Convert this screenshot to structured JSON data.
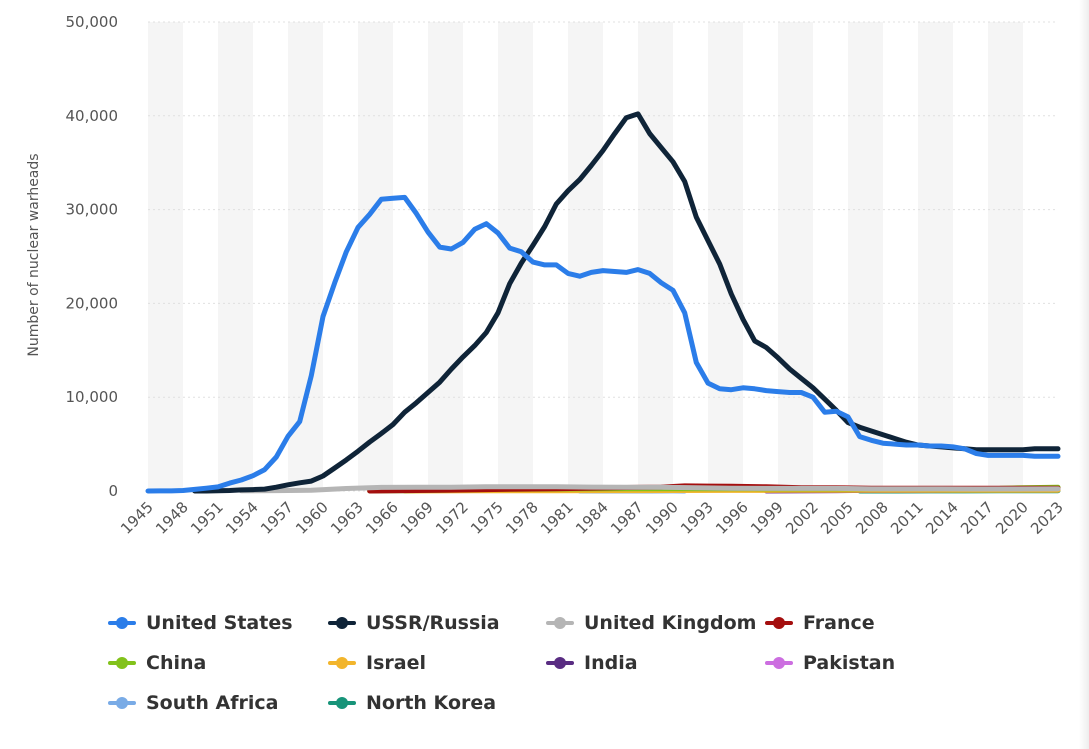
{
  "chart_data": {
    "type": "line",
    "ylabel": "Number of nuclear warheads",
    "ylim": [
      0,
      50000
    ],
    "y_ticks": [
      "0",
      "10,000",
      "20,000",
      "30,000",
      "40,000",
      "50,000"
    ],
    "y_tick_values": [
      0,
      10000,
      20000,
      30000,
      40000,
      50000
    ],
    "x_range": [
      1945,
      2023
    ],
    "x_ticks": [
      "1945",
      "1948",
      "1951",
      "1954",
      "1957",
      "1960",
      "1963",
      "1966",
      "1969",
      "1972",
      "1975",
      "1978",
      "1981",
      "1984",
      "1987",
      "1990",
      "1993",
      "1996",
      "1999",
      "2002",
      "2005",
      "2008",
      "2011",
      "2014",
      "2017",
      "2020",
      "2023"
    ],
    "grid": "alternating vertical bands",
    "legend_position": "bottom",
    "series": [
      {
        "name": "United States",
        "color": "#2b7de9",
        "points": [
          [
            1945,
            2
          ],
          [
            1946,
            9
          ],
          [
            1947,
            13
          ],
          [
            1948,
            50
          ],
          [
            1949,
            170
          ],
          [
            1950,
            300
          ],
          [
            1951,
            440
          ],
          [
            1952,
            840
          ],
          [
            1953,
            1170
          ],
          [
            1954,
            1630
          ],
          [
            1955,
            2280
          ],
          [
            1956,
            3620
          ],
          [
            1957,
            5830
          ],
          [
            1958,
            7400
          ],
          [
            1959,
            12300
          ],
          [
            1960,
            18600
          ],
          [
            1961,
            22200
          ],
          [
            1962,
            25500
          ],
          [
            1963,
            28100
          ],
          [
            1964,
            29500
          ],
          [
            1965,
            31100
          ],
          [
            1966,
            31200
          ],
          [
            1967,
            31300
          ],
          [
            1968,
            29600
          ],
          [
            1969,
            27600
          ],
          [
            1970,
            26000
          ],
          [
            1971,
            25800
          ],
          [
            1972,
            26500
          ],
          [
            1973,
            27900
          ],
          [
            1974,
            28500
          ],
          [
            1975,
            27500
          ],
          [
            1976,
            25900
          ],
          [
            1977,
            25500
          ],
          [
            1978,
            24400
          ],
          [
            1979,
            24100
          ],
          [
            1980,
            24100
          ],
          [
            1981,
            23200
          ],
          [
            1982,
            22900
          ],
          [
            1983,
            23300
          ],
          [
            1984,
            23500
          ],
          [
            1985,
            23400
          ],
          [
            1986,
            23300
          ],
          [
            1987,
            23600
          ],
          [
            1988,
            23200
          ],
          [
            1989,
            22200
          ],
          [
            1990,
            21400
          ],
          [
            1991,
            19000
          ],
          [
            1992,
            13700
          ],
          [
            1993,
            11500
          ],
          [
            1994,
            10900
          ],
          [
            1995,
            10800
          ],
          [
            1996,
            11000
          ],
          [
            1997,
            10900
          ],
          [
            1998,
            10700
          ],
          [
            1999,
            10600
          ],
          [
            2000,
            10500
          ],
          [
            2001,
            10500
          ],
          [
            2002,
            10000
          ],
          [
            2003,
            8400
          ],
          [
            2004,
            8500
          ],
          [
            2005,
            7900
          ],
          [
            2006,
            5800
          ],
          [
            2007,
            5400
          ],
          [
            2008,
            5100
          ],
          [
            2009,
            5000
          ],
          [
            2010,
            4900
          ],
          [
            2011,
            4900
          ],
          [
            2012,
            4800
          ],
          [
            2013,
            4800
          ],
          [
            2014,
            4700
          ],
          [
            2015,
            4500
          ],
          [
            2016,
            4000
          ],
          [
            2017,
            3800
          ],
          [
            2018,
            3800
          ],
          [
            2019,
            3800
          ],
          [
            2020,
            3800
          ],
          [
            2021,
            3700
          ],
          [
            2022,
            3700
          ],
          [
            2023,
            3700
          ]
        ]
      },
      {
        "name": "USSR/Russia",
        "color": "#0f2438",
        "points": [
          [
            1949,
            1
          ],
          [
            1950,
            5
          ],
          [
            1951,
            25
          ],
          [
            1952,
            50
          ],
          [
            1953,
            120
          ],
          [
            1954,
            150
          ],
          [
            1955,
            200
          ],
          [
            1956,
            400
          ],
          [
            1957,
            660
          ],
          [
            1958,
            870
          ],
          [
            1959,
            1060
          ],
          [
            1960,
            1600
          ],
          [
            1961,
            2450
          ],
          [
            1962,
            3320
          ],
          [
            1963,
            4240
          ],
          [
            1964,
            5220
          ],
          [
            1965,
            6130
          ],
          [
            1966,
            7090
          ],
          [
            1967,
            8400
          ],
          [
            1968,
            9400
          ],
          [
            1969,
            10500
          ],
          [
            1970,
            11600
          ],
          [
            1971,
            13000
          ],
          [
            1972,
            14300
          ],
          [
            1973,
            15500
          ],
          [
            1974,
            16900
          ],
          [
            1975,
            19000
          ],
          [
            1976,
            22100
          ],
          [
            1977,
            24300
          ],
          [
            1978,
            26200
          ],
          [
            1979,
            28200
          ],
          [
            1980,
            30600
          ],
          [
            1981,
            32000
          ],
          [
            1982,
            33200
          ],
          [
            1983,
            34700
          ],
          [
            1984,
            36300
          ],
          [
            1985,
            38100
          ],
          [
            1986,
            39800
          ],
          [
            1987,
            40200
          ],
          [
            1988,
            38100
          ],
          [
            1989,
            36600
          ],
          [
            1990,
            35100
          ],
          [
            1991,
            33000
          ],
          [
            1992,
            29200
          ],
          [
            1993,
            26700
          ],
          [
            1994,
            24200
          ],
          [
            1995,
            21000
          ],
          [
            1996,
            18300
          ],
          [
            1997,
            16000
          ],
          [
            1998,
            15300
          ],
          [
            1999,
            14200
          ],
          [
            2000,
            13000
          ],
          [
            2001,
            12000
          ],
          [
            2002,
            11000
          ],
          [
            2003,
            9800
          ],
          [
            2004,
            8600
          ],
          [
            2005,
            7300
          ],
          [
            2006,
            6800
          ],
          [
            2007,
            6400
          ],
          [
            2008,
            6000
          ],
          [
            2009,
            5600
          ],
          [
            2010,
            5200
          ],
          [
            2011,
            4900
          ],
          [
            2012,
            4800
          ],
          [
            2013,
            4700
          ],
          [
            2014,
            4600
          ],
          [
            2015,
            4500
          ],
          [
            2016,
            4400
          ],
          [
            2017,
            4400
          ],
          [
            2018,
            4400
          ],
          [
            2019,
            4400
          ],
          [
            2020,
            4400
          ],
          [
            2021,
            4500
          ],
          [
            2022,
            4500
          ],
          [
            2023,
            4500
          ]
        ]
      },
      {
        "name": "United Kingdom",
        "color": "#b5b5b5",
        "points": [
          [
            1953,
            20
          ],
          [
            1956,
            40
          ],
          [
            1959,
            90
          ],
          [
            1962,
            270
          ],
          [
            1965,
            380
          ],
          [
            1968,
            400
          ],
          [
            1971,
            410
          ],
          [
            1974,
            450
          ],
          [
            1977,
            460
          ],
          [
            1980,
            450
          ],
          [
            1983,
            420
          ],
          [
            1986,
            400
          ],
          [
            1989,
            400
          ],
          [
            1992,
            350
          ],
          [
            1995,
            300
          ],
          [
            1998,
            280
          ],
          [
            2001,
            280
          ],
          [
            2004,
            280
          ],
          [
            2007,
            225
          ],
          [
            2010,
            225
          ],
          [
            2013,
            225
          ],
          [
            2016,
            215
          ],
          [
            2019,
            215
          ],
          [
            2023,
            225
          ]
        ]
      },
      {
        "name": "France",
        "color": "#a40e0e",
        "points": [
          [
            1964,
            4
          ],
          [
            1966,
            36
          ],
          [
            1968,
            50
          ],
          [
            1971,
            100
          ],
          [
            1974,
            150
          ],
          [
            1977,
            200
          ],
          [
            1980,
            250
          ],
          [
            1983,
            310
          ],
          [
            1986,
            370
          ],
          [
            1989,
            420
          ],
          [
            1991,
            540
          ],
          [
            1993,
            525
          ],
          [
            1995,
            500
          ],
          [
            1998,
            450
          ],
          [
            2001,
            350
          ],
          [
            2004,
            350
          ],
          [
            2007,
            300
          ],
          [
            2010,
            300
          ],
          [
            2013,
            300
          ],
          [
            2016,
            300
          ],
          [
            2019,
            290
          ],
          [
            2023,
            290
          ]
        ]
      },
      {
        "name": "China",
        "color": "#82c21b",
        "points": [
          [
            1964,
            1
          ],
          [
            1967,
            25
          ],
          [
            1970,
            75
          ],
          [
            1973,
            150
          ],
          [
            1976,
            185
          ],
          [
            1979,
            205
          ],
          [
            1982,
            225
          ],
          [
            1985,
            240
          ],
          [
            1988,
            240
          ],
          [
            1991,
            235
          ],
          [
            1994,
            235
          ],
          [
            1997,
            230
          ],
          [
            2000,
            225
          ],
          [
            2003,
            220
          ],
          [
            2006,
            220
          ],
          [
            2009,
            240
          ],
          [
            2012,
            250
          ],
          [
            2015,
            260
          ],
          [
            2018,
            280
          ],
          [
            2020,
            350
          ],
          [
            2023,
            410
          ]
        ]
      },
      {
        "name": "Israel",
        "color": "#f2b52c",
        "points": [
          [
            1967,
            2
          ],
          [
            1970,
            15
          ],
          [
            1973,
            25
          ],
          [
            1976,
            30
          ],
          [
            1980,
            35
          ],
          [
            1985,
            45
          ],
          [
            1990,
            55
          ],
          [
            1995,
            60
          ],
          [
            2000,
            70
          ],
          [
            2005,
            80
          ],
          [
            2010,
            80
          ],
          [
            2015,
            80
          ],
          [
            2020,
            90
          ],
          [
            2023,
            90
          ]
        ]
      },
      {
        "name": "India",
        "color": "#592c82",
        "points": [
          [
            1998,
            10
          ],
          [
            2001,
            30
          ],
          [
            2004,
            40
          ],
          [
            2007,
            60
          ],
          [
            2010,
            80
          ],
          [
            2013,
            100
          ],
          [
            2016,
            130
          ],
          [
            2019,
            150
          ],
          [
            2023,
            164
          ]
        ]
      },
      {
        "name": "Pakistan",
        "color": "#cc6ee0",
        "points": [
          [
            1998,
            5
          ],
          [
            2001,
            30
          ],
          [
            2004,
            45
          ],
          [
            2007,
            70
          ],
          [
            2010,
            90
          ],
          [
            2013,
            110
          ],
          [
            2016,
            140
          ],
          [
            2019,
            160
          ],
          [
            2023,
            170
          ]
        ]
      },
      {
        "name": "South Africa",
        "color": "#79abe6",
        "points": [
          [
            1982,
            1
          ],
          [
            1985,
            2
          ],
          [
            1988,
            5
          ],
          [
            1990,
            6
          ],
          [
            1991,
            1
          ]
        ]
      },
      {
        "name": "North Korea",
        "color": "#179479",
        "points": [
          [
            2006,
            1
          ],
          [
            2009,
            3
          ],
          [
            2012,
            6
          ],
          [
            2015,
            10
          ],
          [
            2018,
            20
          ],
          [
            2020,
            30
          ],
          [
            2023,
            30
          ]
        ]
      }
    ]
  }
}
